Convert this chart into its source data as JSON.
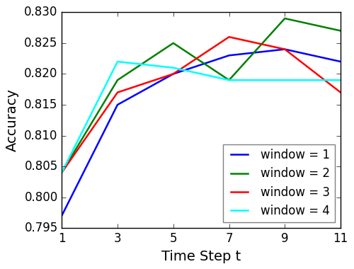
{
  "x": [
    1,
    3,
    5,
    7,
    9,
    11
  ],
  "window1": [
    0.797,
    0.815,
    0.82,
    0.823,
    0.824,
    0.822
  ],
  "window2": [
    0.804,
    0.819,
    0.825,
    0.819,
    0.829,
    0.827
  ],
  "window3": [
    0.804,
    0.817,
    0.82,
    0.826,
    0.824,
    0.817
  ],
  "window4": [
    0.804,
    0.822,
    0.821,
    0.819,
    0.819,
    0.819
  ],
  "colors": [
    "blue",
    "green",
    "red",
    "cyan"
  ],
  "labels": [
    "window = 1",
    "window = 2",
    "window = 3",
    "window = 4"
  ],
  "xlabel": "Time Step t",
  "ylabel": "Accuracy",
  "ylim": [
    0.795,
    0.83
  ],
  "xlim": [
    1,
    11
  ],
  "xticks": [
    1,
    3,
    5,
    7,
    9,
    11
  ],
  "yticks": [
    0.795,
    0.8,
    0.805,
    0.81,
    0.815,
    0.82,
    0.825,
    0.83
  ],
  "axis_fontsize": 14,
  "tick_fontsize": 12,
  "legend_fontsize": 12,
  "linewidth": 1.8,
  "legend_loc": "lower right",
  "figure_width": 5.0,
  "figure_height": 3.8,
  "dpi": 100
}
